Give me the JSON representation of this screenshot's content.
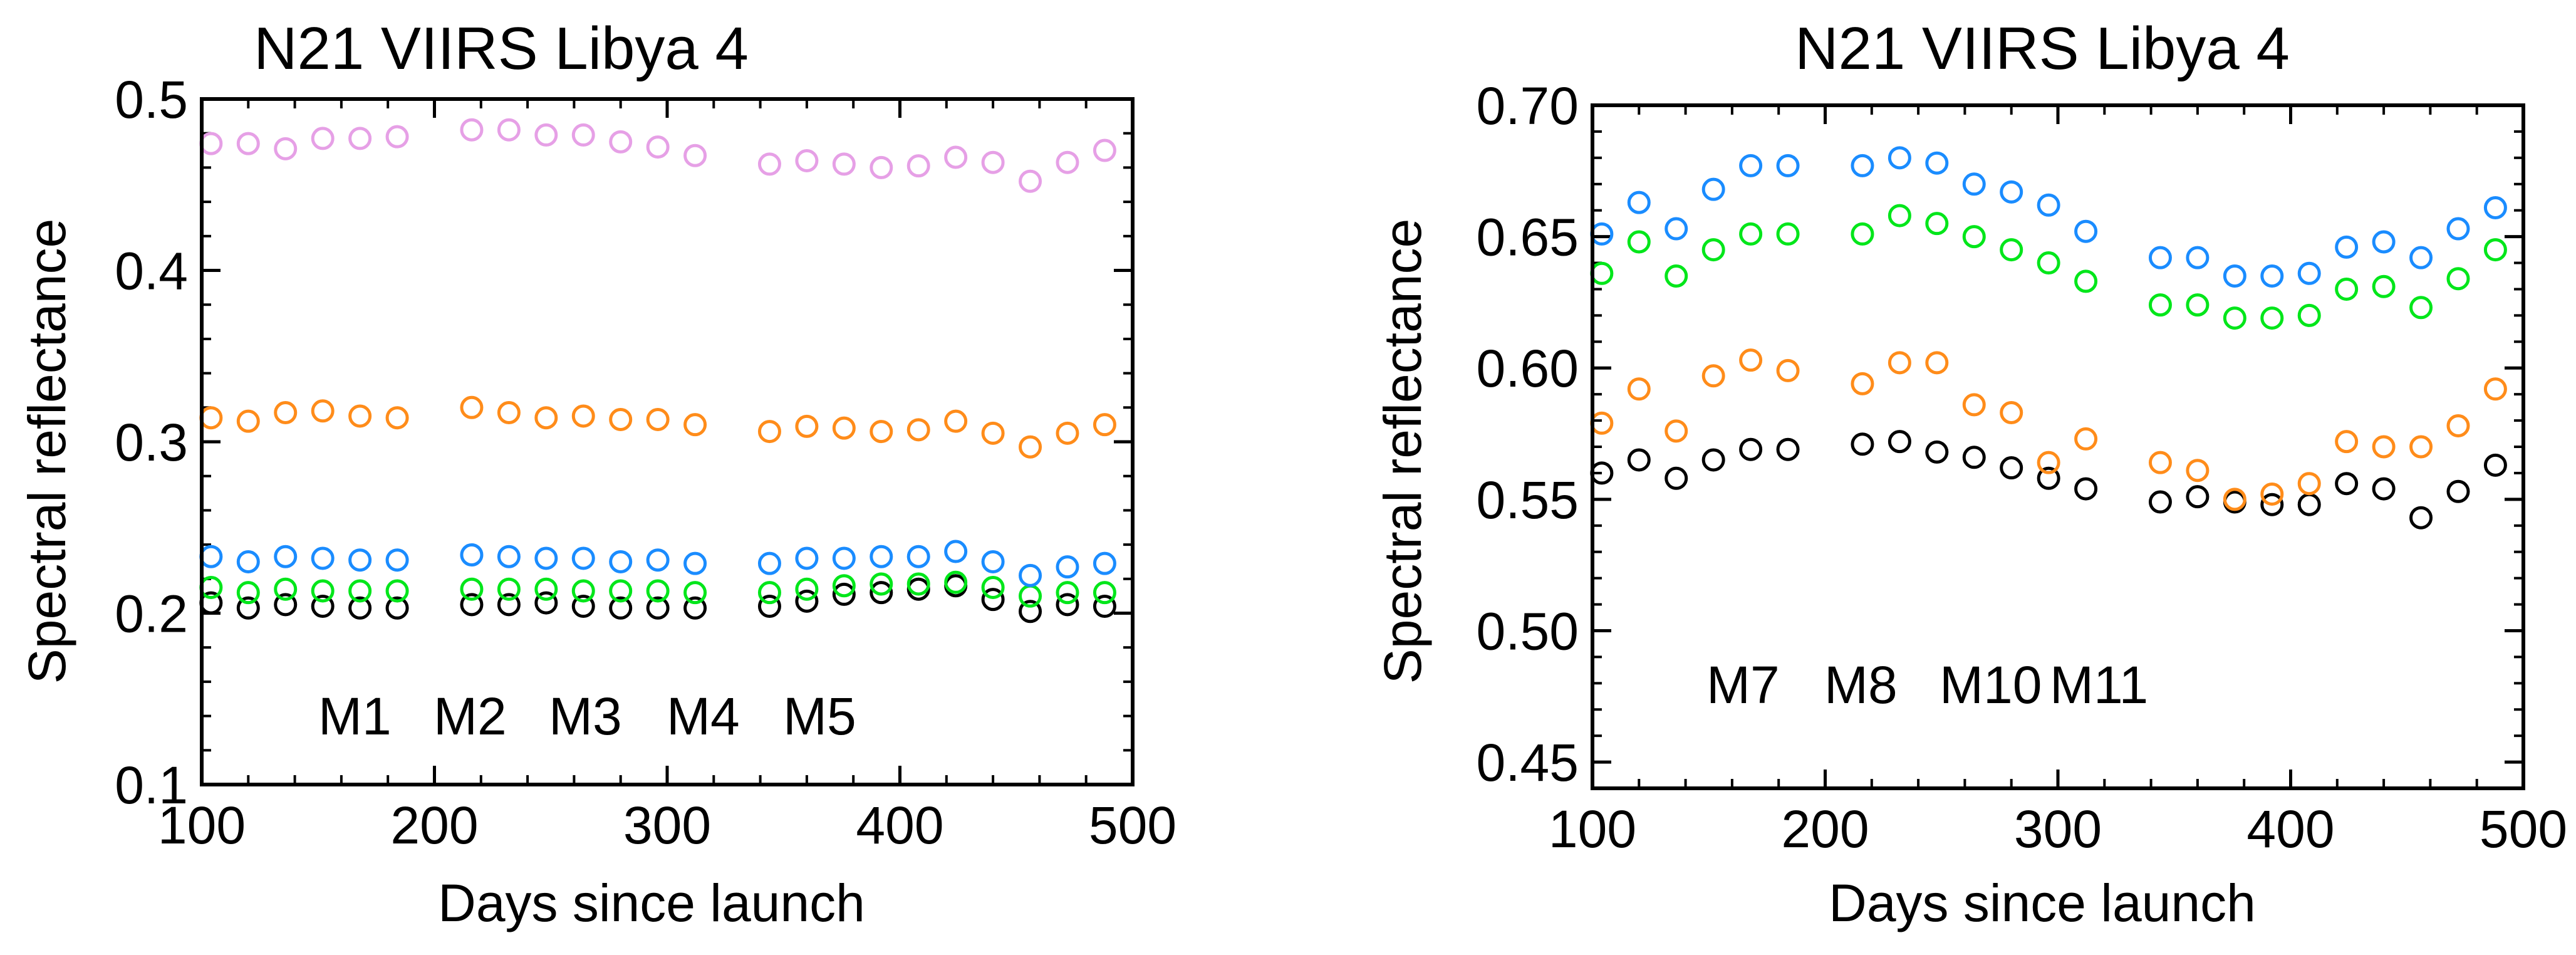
{
  "chart_data": [
    {
      "type": "scatter",
      "title": "N21 VIIRS Libya 4",
      "xlabel": "Days since launch",
      "ylabel": "Spectral reflectance",
      "xlim": [
        100,
        500
      ],
      "ylim": [
        0.1,
        0.5
      ],
      "xticks": [
        100,
        200,
        300,
        400,
        500
      ],
      "xtick_labels": [
        "100",
        "200",
        "300",
        "400",
        "500"
      ],
      "yticks": [
        0.1,
        0.2,
        0.3,
        0.4,
        0.5
      ],
      "ytick_labels": [
        "0.1",
        "0.2",
        "0.3",
        "0.4",
        "0.5"
      ],
      "x": [
        104,
        120,
        136,
        152,
        168,
        184,
        216,
        232,
        248,
        264,
        280,
        296,
        312,
        344,
        360,
        376,
        392,
        408,
        424,
        440,
        456,
        472,
        488
      ],
      "series": [
        {
          "name": "M1",
          "color": "#000000",
          "values": [
            0.206,
            0.203,
            0.205,
            0.204,
            0.203,
            0.203,
            0.205,
            0.205,
            0.206,
            0.204,
            0.203,
            0.203,
            0.203,
            0.204,
            0.207,
            0.211,
            0.212,
            0.214,
            0.216,
            0.208,
            0.201,
            0.205,
            0.204
          ]
        },
        {
          "name": "M2",
          "color": "#00e61a",
          "values": [
            0.215,
            0.212,
            0.214,
            0.213,
            0.213,
            0.213,
            0.214,
            0.214,
            0.214,
            0.213,
            0.213,
            0.213,
            0.212,
            0.212,
            0.214,
            0.216,
            0.217,
            0.217,
            0.218,
            0.215,
            0.21,
            0.212,
            0.212
          ]
        },
        {
          "name": "M3",
          "color": "#1a8cff",
          "values": [
            0.233,
            0.23,
            0.233,
            0.232,
            0.231,
            0.231,
            0.234,
            0.233,
            0.232,
            0.232,
            0.23,
            0.231,
            0.229,
            0.229,
            0.232,
            0.232,
            0.233,
            0.233,
            0.236,
            0.23,
            0.222,
            0.227,
            0.229
          ]
        },
        {
          "name": "M4",
          "color": "#ff8c1a",
          "values": [
            0.314,
            0.312,
            0.317,
            0.318,
            0.315,
            0.314,
            0.32,
            0.317,
            0.314,
            0.315,
            0.313,
            0.313,
            0.31,
            0.306,
            0.309,
            0.308,
            0.306,
            0.307,
            0.312,
            0.305,
            0.297,
            0.305,
            0.31
          ]
        },
        {
          "name": "M5",
          "color": "#e6a0e6",
          "values": [
            0.474,
            0.474,
            0.471,
            0.477,
            0.477,
            0.478,
            0.482,
            0.482,
            0.479,
            0.479,
            0.475,
            0.472,
            0.467,
            0.462,
            0.464,
            0.462,
            0.46,
            0.461,
            0.466,
            0.463,
            0.452,
            0.463,
            0.47
          ]
        }
      ]
    },
    {
      "type": "scatter",
      "title": "N21 VIIRS Libya 4",
      "xlabel": "Days since launch",
      "ylabel": "Spectral reflectance",
      "xlim": [
        100,
        500
      ],
      "ylim": [
        0.44,
        0.7
      ],
      "xticks": [
        100,
        200,
        300,
        400,
        500
      ],
      "xtick_labels": [
        "100",
        "200",
        "300",
        "400",
        "500"
      ],
      "yticks": [
        0.45,
        0.5,
        0.55,
        0.6,
        0.65,
        0.7
      ],
      "ytick_labels": [
        "0.45",
        "0.50",
        "0.55",
        "0.60",
        "0.65",
        "0.70"
      ],
      "x": [
        104,
        120,
        136,
        152,
        168,
        184,
        216,
        232,
        248,
        264,
        280,
        296,
        312,
        344,
        360,
        376,
        392,
        408,
        424,
        440,
        456,
        472,
        488
      ],
      "series": [
        {
          "name": "M7",
          "color": "#000000",
          "values": [
            0.56,
            0.565,
            0.558,
            0.565,
            0.569,
            0.569,
            0.571,
            0.572,
            0.568,
            0.566,
            0.562,
            0.558,
            0.554,
            0.549,
            0.551,
            0.549,
            0.548,
            0.548,
            0.556,
            0.554,
            0.543,
            0.553,
            0.563
          ]
        },
        {
          "name": "M8",
          "color": "#00e61a",
          "values": [
            0.636,
            0.648,
            0.635,
            0.645,
            0.651,
            0.651,
            0.651,
            0.658,
            0.655,
            0.65,
            0.645,
            0.64,
            0.633,
            0.624,
            0.624,
            0.619,
            0.619,
            0.62,
            0.63,
            0.631,
            0.623,
            0.634,
            0.645
          ]
        },
        {
          "name": "M10",
          "color": "#1a8cff",
          "values": [
            0.651,
            0.663,
            0.653,
            0.668,
            0.677,
            0.677,
            0.677,
            0.68,
            0.678,
            0.67,
            0.667,
            0.662,
            0.652,
            0.642,
            0.642,
            0.635,
            0.635,
            0.636,
            0.646,
            0.648,
            0.642,
            0.653,
            0.661
          ]
        },
        {
          "name": "M11",
          "color": "#ff8c1a",
          "values": [
            0.579,
            0.592,
            0.576,
            0.597,
            0.603,
            0.599,
            0.594,
            0.602,
            0.602,
            0.586,
            0.583,
            0.564,
            0.573,
            0.564,
            0.561,
            0.55,
            0.552,
            0.556,
            0.572,
            0.57,
            0.57,
            0.578,
            0.592
          ]
        }
      ]
    }
  ]
}
